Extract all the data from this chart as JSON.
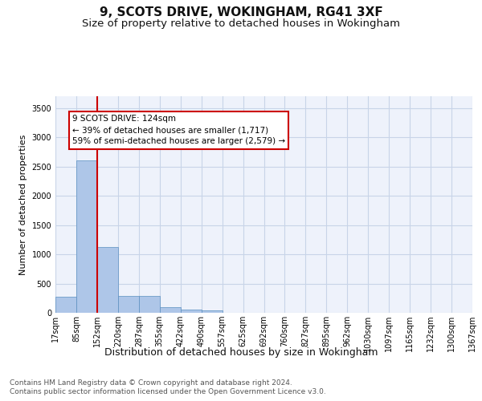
{
  "title1": "9, SCOTS DRIVE, WOKINGHAM, RG41 3XF",
  "title2": "Size of property relative to detached houses in Wokingham",
  "xlabel": "Distribution of detached houses by size in Wokingham",
  "ylabel": "Number of detached properties",
  "bar_values": [
    270,
    2600,
    1120,
    285,
    285,
    95,
    60,
    40,
    0,
    0,
    0,
    0,
    0,
    0,
    0,
    0,
    0,
    0,
    0,
    0
  ],
  "bar_labels": [
    "17sqm",
    "85sqm",
    "152sqm",
    "220sqm",
    "287sqm",
    "355sqm",
    "422sqm",
    "490sqm",
    "557sqm",
    "625sqm",
    "692sqm",
    "760sqm",
    "827sqm",
    "895sqm",
    "962sqm",
    "1030sqm",
    "1097sqm",
    "1165sqm",
    "1232sqm",
    "1300sqm",
    "1367sqm"
  ],
  "bar_color": "#aec6e8",
  "bar_edge_color": "#5a8fc0",
  "grid_color": "#c8d4e8",
  "background_color": "#eef2fb",
  "annotation_line1": "9 SCOTS DRIVE: 124sqm",
  "annotation_line2": "← 39% of detached houses are smaller (1,717)",
  "annotation_line3": "59% of semi-detached houses are larger (2,579) →",
  "annotation_box_color": "#ffffff",
  "annotation_box_edgecolor": "#cc0000",
  "vline_color": "#cc0000",
  "vline_pos": 1.5,
  "ylim": [
    0,
    3700
  ],
  "yticks": [
    0,
    500,
    1000,
    1500,
    2000,
    2500,
    3000,
    3500
  ],
  "footer1": "Contains HM Land Registry data © Crown copyright and database right 2024.",
  "footer2": "Contains public sector information licensed under the Open Government Licence v3.0.",
  "title1_fontsize": 11,
  "title2_fontsize": 9.5,
  "xlabel_fontsize": 9,
  "ylabel_fontsize": 8,
  "tick_fontsize": 7,
  "annotation_fontsize": 7.5,
  "footer_fontsize": 6.5
}
